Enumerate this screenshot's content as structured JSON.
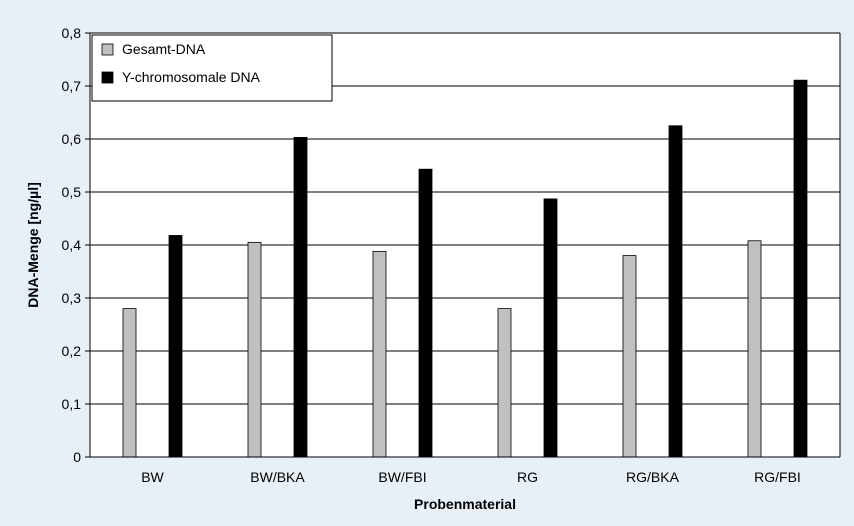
{
  "chart_data": {
    "type": "bar",
    "title": "",
    "xlabel": "Probenmaterial",
    "ylabel": "DNA-Menge [ng/µl]",
    "categories": [
      "BW",
      "BW/BKA",
      "BW/FBI",
      "RG",
      "RG/BKA",
      "RG/FBI"
    ],
    "series": [
      {
        "name": "Gesamt-DNA",
        "color": "#c0c0c0",
        "values": [
          0.28,
          0.405,
          0.388,
          0.28,
          0.38,
          0.408
        ]
      },
      {
        "name": "Y-chromosomale DNA",
        "color": "#000000",
        "values": [
          0.418,
          0.603,
          0.543,
          0.487,
          0.625,
          0.711
        ]
      }
    ],
    "ylim": [
      0,
      0.8
    ],
    "yticks": [
      "0",
      "0,1",
      "0,2",
      "0,3",
      "0,4",
      "0,5",
      "0,6",
      "0,7",
      "0,8"
    ],
    "grid": true,
    "legend_position": "top-left"
  }
}
